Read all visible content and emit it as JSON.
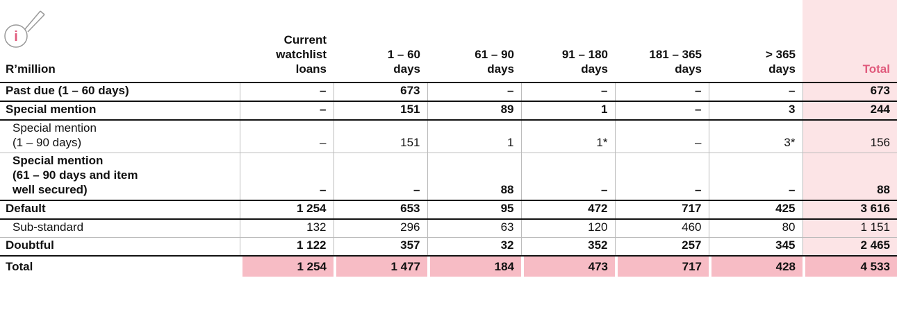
{
  "header": {
    "label": "R’million",
    "icon": "i",
    "columns": [
      "Current\nwatchlist\nloans",
      "1 – 60\ndays",
      "61 – 90\ndays",
      "91 – 180\ndays",
      "181 – 365\ndays",
      "> 365\ndays",
      "Total"
    ]
  },
  "table": {
    "rows": [
      {
        "style": "bold",
        "label": "Past due (1 – 60 days)",
        "cells": [
          "–",
          "673",
          "–",
          "–",
          "–",
          "–",
          "673"
        ]
      },
      {
        "style": "bold",
        "label": "Special mention",
        "cells": [
          "–",
          "151",
          "89",
          "1",
          "–",
          "3",
          "244"
        ]
      },
      {
        "style": "normal",
        "label": "Special mention\n(1 – 90 days)",
        "cells": [
          "–",
          "151",
          "1",
          "1*",
          "–",
          "3*",
          "156"
        ]
      },
      {
        "style": "bold",
        "label": "Special mention\n(61 – 90 days and item\nwell secured)",
        "cells": [
          "–",
          "–",
          "88",
          "–",
          "–",
          "–",
          "88"
        ]
      },
      {
        "style": "bold",
        "label": "Default",
        "cells": [
          "1 254",
          "653",
          "95",
          "472",
          "717",
          "425",
          "3 616"
        ]
      },
      {
        "style": "normal",
        "label": "Sub-standard",
        "cells": [
          "132",
          "296",
          "63",
          "120",
          "460",
          "80",
          "1 151"
        ]
      },
      {
        "style": "bold",
        "label": "Doubtful",
        "cells": [
          "1 122",
          "357",
          "32",
          "352",
          "257",
          "345",
          "2 465"
        ]
      },
      {
        "style": "bold",
        "label": "Total",
        "cells": [
          "1 254",
          "1 477",
          "184",
          "473",
          "717",
          "428",
          "4 533"
        ]
      }
    ]
  }
}
